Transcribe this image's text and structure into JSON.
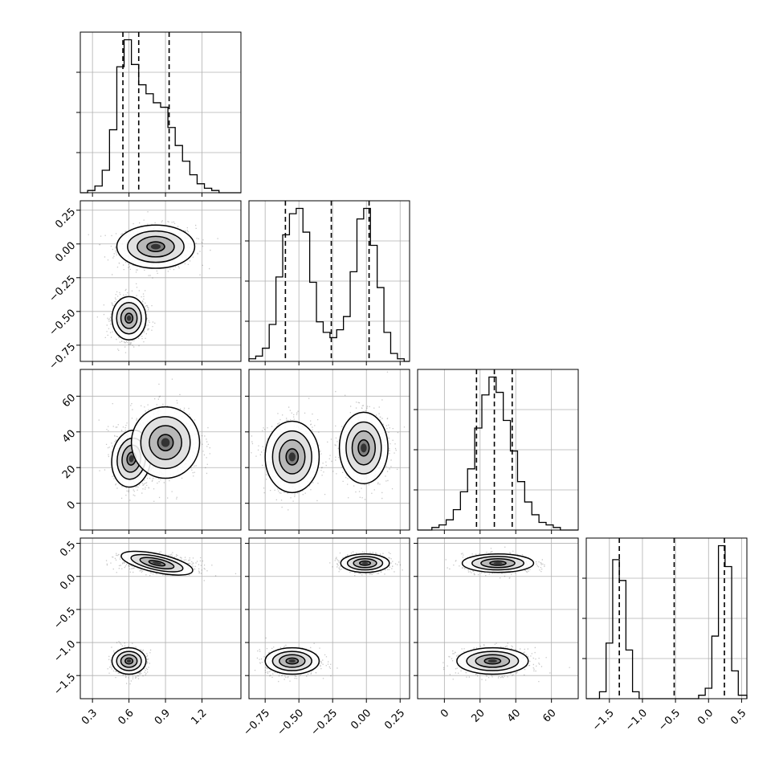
{
  "colors": {
    "axes": "#000000",
    "grid": "#b0b0b0",
    "hist": "#000000",
    "contour": "#000000",
    "points": "#000000",
    "background": "#ffffff"
  },
  "params": [
    {
      "range": [
        0.2,
        1.52
      ],
      "ticks": [
        0.3,
        0.6,
        0.9,
        1.2
      ],
      "tick_labels": [
        "0.3",
        "0.6",
        "0.9",
        "1.2"
      ]
    },
    {
      "range": [
        -0.87,
        0.32
      ],
      "ticks": [
        -0.75,
        -0.5,
        -0.25,
        0.0,
        0.25
      ],
      "tick_labels": [
        "−0.75",
        "−0.50",
        "−0.25",
        "0.00",
        "0.25"
      ]
    },
    {
      "range": [
        -15,
        75
      ],
      "ticks": [
        0,
        20,
        40,
        60
      ],
      "tick_labels": [
        "0",
        "20",
        "40",
        "60"
      ]
    },
    {
      "range": [
        -1.85,
        0.58
      ],
      "ticks": [
        -1.5,
        -1.0,
        -0.5,
        0.0,
        0.5
      ],
      "tick_labels": [
        "−1.5",
        "−1.0",
        "−0.5",
        "0.0",
        "0.5"
      ]
    }
  ],
  "chart_data": {
    "type": "corner",
    "grid": true,
    "histograms": [
      {
        "bin_edges": [
          0.2,
          0.26,
          0.32,
          0.38,
          0.44,
          0.5,
          0.56,
          0.62,
          0.68,
          0.74,
          0.8,
          0.86,
          0.92,
          0.98,
          1.04,
          1.1,
          1.16,
          1.22,
          1.28,
          1.34,
          1.4,
          1.46,
          1.52
        ],
        "counts": [
          0,
          1,
          3,
          10,
          28,
          56,
          68,
          57,
          48,
          44,
          40,
          38,
          29,
          21,
          14,
          8,
          4,
          2,
          1,
          0,
          0,
          0
        ],
        "quantiles": [
          0.55,
          0.68,
          0.93
        ]
      },
      {
        "bin_edges": [
          -0.87,
          -0.82,
          -0.77,
          -0.72,
          -0.67,
          -0.62,
          -0.57,
          -0.52,
          -0.47,
          -0.42,
          -0.37,
          -0.32,
          -0.27,
          -0.22,
          -0.17,
          -0.12,
          -0.07,
          -0.02,
          0.03,
          0.08,
          0.13,
          0.18,
          0.23,
          0.28,
          0.32
        ],
        "counts": [
          1,
          2,
          5,
          14,
          32,
          48,
          56,
          58,
          49,
          30,
          15,
          11,
          9,
          12,
          17,
          34,
          54,
          58,
          44,
          28,
          11,
          3,
          1,
          0
        ],
        "quantiles": [
          -0.6,
          -0.26,
          0.02
        ]
      },
      {
        "bin_edges": [
          -15,
          -11,
          -7,
          -3,
          1,
          5,
          9,
          13,
          17,
          21,
          25,
          29,
          33,
          37,
          41,
          45,
          49,
          53,
          57,
          61,
          65,
          69,
          75
        ],
        "counts": [
          0,
          0,
          1,
          2,
          4,
          8,
          15,
          24,
          40,
          53,
          60,
          54,
          43,
          31,
          19,
          11,
          6,
          3,
          2,
          1,
          0,
          0
        ],
        "quantiles": [
          18,
          28,
          38
        ]
      },
      {
        "bin_edges": [
          -1.85,
          -1.75,
          -1.65,
          -1.55,
          -1.45,
          -1.35,
          -1.25,
          -1.15,
          -1.05,
          -0.95,
          -0.85,
          -0.75,
          -0.65,
          -0.55,
          -0.45,
          -0.35,
          -0.25,
          -0.15,
          -0.05,
          0.05,
          0.15,
          0.25,
          0.35,
          0.45,
          0.58
        ],
        "counts": [
          0,
          0,
          2,
          16,
          40,
          34,
          14,
          2,
          0,
          0,
          0,
          0,
          0,
          0,
          0,
          0,
          0,
          1,
          3,
          18,
          44,
          38,
          8,
          1
        ],
        "quantiles": [
          -1.35,
          -0.52,
          0.24
        ]
      }
    ],
    "pairs": [
      {
        "x": 0,
        "y": 1,
        "modes": [
          {
            "mx": 0.82,
            "my": -0.02,
            "sx": 0.16,
            "sy": 0.08,
            "w": 0.52,
            "r": 0
          },
          {
            "mx": 0.6,
            "my": -0.55,
            "sx": 0.07,
            "sy": 0.08,
            "w": 0.48,
            "r": 0
          }
        ]
      },
      {
        "x": 0,
        "y": 2,
        "modes": [
          {
            "mx": 0.62,
            "my": 25,
            "sx": 0.08,
            "sy": 8,
            "w": 0.5,
            "r": -0.2
          },
          {
            "mx": 0.9,
            "my": 34,
            "sx": 0.14,
            "sy": 10,
            "w": 0.5,
            "r": 0
          }
        ]
      },
      {
        "x": 0,
        "y": 3,
        "modes": [
          {
            "mx": 0.83,
            "my": 0.2,
            "sx": 0.15,
            "sy": 0.07,
            "w": 0.52,
            "r": -0.3
          },
          {
            "mx": 0.6,
            "my": -1.28,
            "sx": 0.07,
            "sy": 0.1,
            "w": 0.48,
            "r": 0
          }
        ]
      },
      {
        "x": 1,
        "y": 2,
        "modes": [
          {
            "mx": -0.55,
            "my": 26,
            "sx": 0.1,
            "sy": 10,
            "w": 0.5,
            "r": 0
          },
          {
            "mx": -0.02,
            "my": 31,
            "sx": 0.09,
            "sy": 10,
            "w": 0.5,
            "r": 0
          }
        ]
      },
      {
        "x": 1,
        "y": 3,
        "modes": [
          {
            "mx": -0.01,
            "my": 0.2,
            "sx": 0.09,
            "sy": 0.07,
            "w": 0.5,
            "r": 0
          },
          {
            "mx": -0.55,
            "my": -1.28,
            "sx": 0.1,
            "sy": 0.1,
            "w": 0.5,
            "r": 0
          }
        ]
      },
      {
        "x": 2,
        "y": 3,
        "modes": [
          {
            "mx": 30,
            "my": 0.2,
            "sx": 10,
            "sy": 0.07,
            "w": 0.5,
            "r": 0
          },
          {
            "mx": 27,
            "my": -1.28,
            "sx": 10,
            "sy": 0.1,
            "w": 0.5,
            "r": 0
          }
        ]
      }
    ]
  }
}
